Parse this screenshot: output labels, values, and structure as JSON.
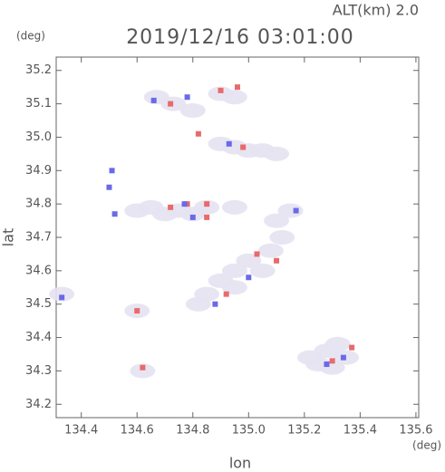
{
  "chart_data": {
    "type": "scatter",
    "title": "2019/12/16 03:01:00",
    "subtitle": "ALT(km) 2.0",
    "x_label": "lon",
    "y_label": "lat",
    "x_unit": "(deg)",
    "y_unit": "(deg)",
    "xlim": [
      134.31,
      135.61
    ],
    "ylim": [
      34.16,
      35.24
    ],
    "xticks": [
      134.4,
      134.6,
      134.8,
      {
        "value": 135,
        "label": "135.0"
      },
      135.2,
      135.4,
      135.6
    ],
    "yticks": [
      34.2,
      34.3,
      34.4,
      34.5,
      34.6,
      34.7,
      34.8,
      34.9,
      {
        "value": 35,
        "label": "35.0"
      },
      35.1,
      35.2
    ],
    "series": [
      {
        "color": "#e6e2f2",
        "x": [
          134.67,
          134.73,
          134.8,
          134.9,
          134.95,
          134.9,
          134.95,
          135.0,
          135.05,
          135.1,
          134.6,
          134.65,
          134.7,
          134.75,
          134.8,
          134.85,
          134.95,
          135.1,
          135.15,
          135.12,
          135.08,
          135.0,
          134.95,
          134.9,
          134.85,
          134.82,
          134.95,
          135.05,
          135.22,
          135.28,
          135.32,
          135.25,
          135.35,
          135.3,
          134.33,
          134.6,
          134.62
        ],
        "values": [
          35.12,
          35.1,
          35.08,
          35.13,
          35.12,
          34.98,
          34.97,
          34.96,
          34.96,
          34.95,
          34.78,
          34.79,
          34.77,
          34.78,
          34.77,
          34.79,
          34.79,
          34.75,
          34.78,
          34.7,
          34.66,
          34.63,
          34.6,
          34.57,
          34.53,
          34.5,
          34.55,
          34.6,
          34.34,
          34.36,
          34.38,
          34.32,
          34.34,
          34.31,
          34.53,
          34.48,
          34.3
        ]
      },
      {
        "color": "#e86a6a",
        "x": [
          134.9,
          134.96,
          134.72,
          134.82,
          134.98,
          134.72,
          134.78,
          134.85,
          135.03,
          135.1,
          134.92,
          135.37,
          135.3,
          134.6,
          134.62,
          134.85
        ],
        "values": [
          35.14,
          35.15,
          35.1,
          35.01,
          34.97,
          34.79,
          34.8,
          34.8,
          34.65,
          34.63,
          34.53,
          34.37,
          34.33,
          34.48,
          34.31,
          34.76
        ]
      },
      {
        "color": "#6a6ae8",
        "x": [
          134.78,
          134.66,
          134.93,
          134.52,
          134.8,
          134.77,
          135.17,
          134.88,
          135.0,
          135.34,
          135.28,
          134.33,
          134.51,
          134.5
        ],
        "values": [
          35.12,
          35.11,
          34.98,
          34.77,
          34.76,
          34.8,
          34.78,
          34.5,
          34.58,
          34.34,
          34.32,
          34.52,
          34.9,
          34.85
        ]
      }
    ]
  }
}
